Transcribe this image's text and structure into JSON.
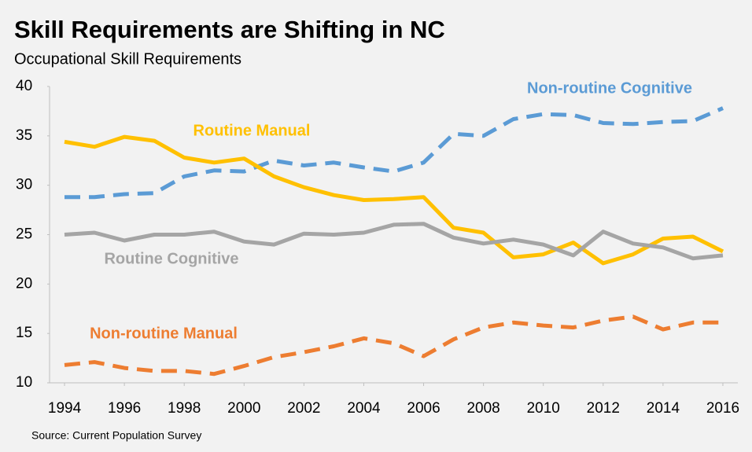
{
  "chart_data": {
    "type": "line",
    "title": "Skill Requirements are Shifting in NC",
    "subtitle": "Occupational Skill Requirements",
    "source": "Source: Current Population Survey",
    "x": [
      1994,
      1995,
      1996,
      1997,
      1998,
      1999,
      2000,
      2001,
      2002,
      2003,
      2004,
      2005,
      2006,
      2007,
      2008,
      2009,
      2010,
      2011,
      2012,
      2013,
      2014,
      2015,
      2016
    ],
    "xlim": [
      1993.5,
      2016.5
    ],
    "xticks": [
      1994,
      1996,
      1998,
      2000,
      2002,
      2004,
      2006,
      2008,
      2010,
      2012,
      2014,
      2016
    ],
    "ylim": [
      10,
      40
    ],
    "yticks": [
      10,
      15,
      20,
      25,
      30,
      35,
      40
    ],
    "grid": false,
    "series": [
      {
        "name": "Non-routine Cognitive",
        "color": "#5b9bd5",
        "dashed": true,
        "values": [
          28.8,
          28.8,
          29.1,
          29.2,
          30.9,
          31.5,
          31.4,
          32.5,
          32.0,
          32.3,
          31.8,
          31.4,
          32.3,
          35.2,
          35.0,
          36.7,
          37.2,
          37.1,
          36.3,
          36.2,
          36.4,
          36.5,
          37.8
        ]
      },
      {
        "name": "Routine Manual",
        "color": "#ffc000",
        "dashed": false,
        "values": [
          34.4,
          33.9,
          34.9,
          34.5,
          32.8,
          32.3,
          32.7,
          30.9,
          29.8,
          29.0,
          28.5,
          28.6,
          28.8,
          25.7,
          25.2,
          22.7,
          23.0,
          24.2,
          22.1,
          23.0,
          24.6,
          24.8,
          23.3
        ]
      },
      {
        "name": "Routine Cognitive",
        "color": "#a5a5a5",
        "dashed": false,
        "values": [
          25.0,
          25.2,
          24.4,
          25.0,
          25.0,
          25.3,
          24.3,
          24.0,
          25.1,
          25.0,
          25.2,
          26.0,
          26.1,
          24.7,
          24.1,
          24.5,
          24.0,
          22.9,
          25.3,
          24.1,
          23.7,
          22.6,
          22.9
        ]
      },
      {
        "name": "Non-routine Manual",
        "color": "#ed7d31",
        "dashed": true,
        "values": [
          11.8,
          12.1,
          11.5,
          11.2,
          11.2,
          10.9,
          11.7,
          12.6,
          13.1,
          13.7,
          14.5,
          14.0,
          12.7,
          14.4,
          15.6,
          16.1,
          15.8,
          15.6,
          16.3,
          16.7,
          15.4,
          16.1,
          16.1
        ]
      }
    ]
  }
}
